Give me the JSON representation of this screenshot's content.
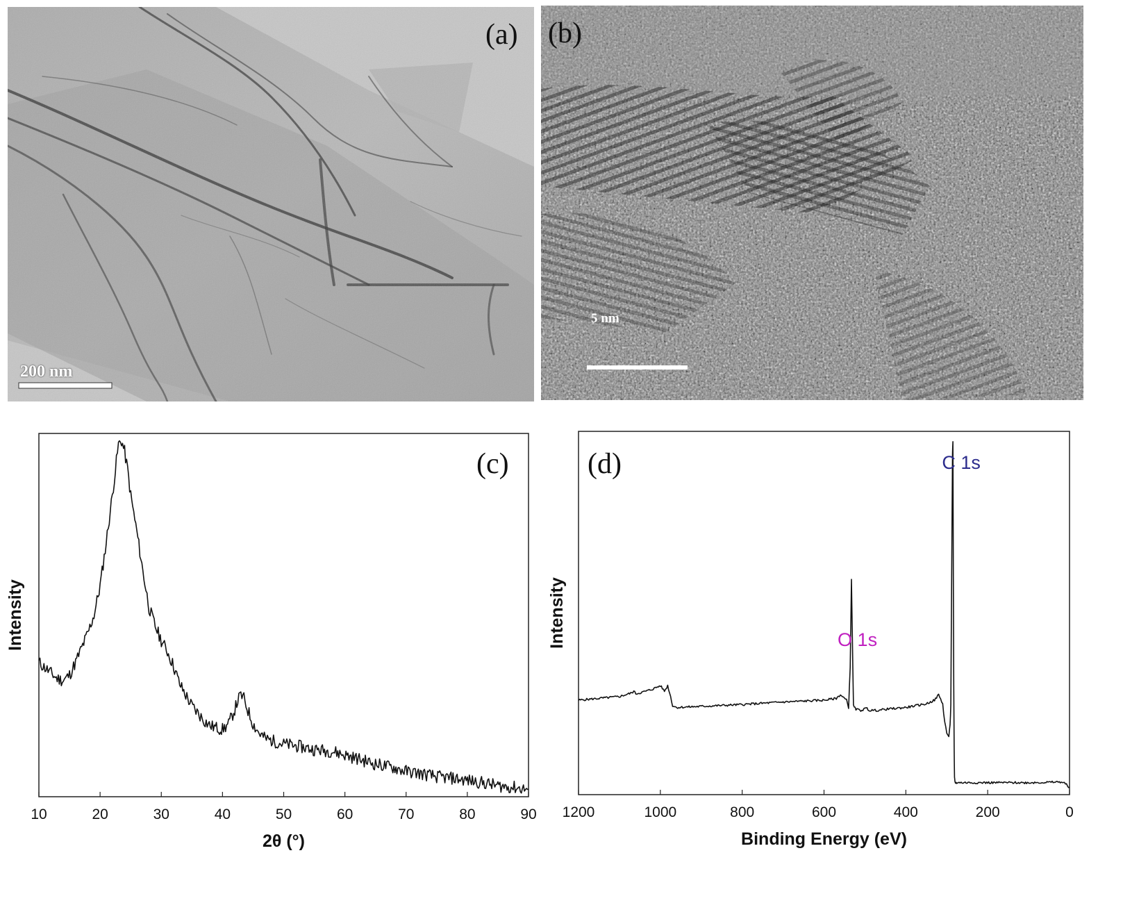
{
  "panels": {
    "a": {
      "label": "(a)",
      "scale_bar_text": "200 nm"
    },
    "b": {
      "label": "(b)",
      "scale_bar_text": "5 nm"
    },
    "c": {
      "label": "(c)"
    },
    "d": {
      "label": "(d)"
    }
  },
  "chart_data": [
    {
      "panel": "c",
      "type": "line",
      "xlabel": "2θ (°)",
      "ylabel": "Intensity",
      "xlim": [
        10,
        90
      ],
      "ylim": [
        0,
        1
      ],
      "x_ticks": [
        "10",
        "20",
        "30",
        "40",
        "50",
        "60",
        "70",
        "80",
        "90"
      ],
      "grid": false,
      "line_color": "#111111",
      "series": [
        {
          "x": [
            10,
            11,
            12,
            13,
            14,
            15,
            16,
            17,
            18,
            19,
            20,
            21,
            22,
            22.5,
            23,
            23.5,
            24,
            24.5,
            25,
            26,
            27,
            28,
            29,
            30,
            31,
            32,
            33,
            34,
            35,
            36,
            37,
            38,
            39,
            40,
            41,
            42,
            42.5,
            43,
            43.5,
            44,
            45,
            46,
            47,
            48,
            50,
            52,
            55,
            58,
            60,
            62,
            65,
            68,
            70,
            72,
            75,
            78,
            80,
            82,
            85,
            88,
            90
          ],
          "values": [
            0.37,
            0.355,
            0.34,
            0.325,
            0.32,
            0.335,
            0.37,
            0.41,
            0.45,
            0.5,
            0.58,
            0.7,
            0.83,
            0.9,
            0.97,
            0.98,
            0.95,
            0.9,
            0.83,
            0.73,
            0.62,
            0.52,
            0.47,
            0.43,
            0.4,
            0.36,
            0.31,
            0.28,
            0.25,
            0.23,
            0.21,
            0.195,
            0.19,
            0.185,
            0.2,
            0.24,
            0.265,
            0.28,
            0.27,
            0.245,
            0.2,
            0.175,
            0.16,
            0.155,
            0.145,
            0.14,
            0.13,
            0.125,
            0.115,
            0.105,
            0.09,
            0.08,
            0.07,
            0.065,
            0.055,
            0.05,
            0.045,
            0.04,
            0.03,
            0.025,
            0.02
          ]
        }
      ]
    },
    {
      "panel": "d",
      "type": "line",
      "xlabel": "Binding Energy (eV)",
      "ylabel": "Intensity",
      "xlim": [
        1200,
        0
      ],
      "ylim": [
        0,
        1
      ],
      "x_ticks": [
        "1200",
        "1000",
        "800",
        "600",
        "400",
        "200",
        "0"
      ],
      "grid": false,
      "line_color": "#111111",
      "annotations": [
        {
          "text": "C 1s",
          "x": 285,
          "color": "#2b2b8c"
        },
        {
          "text": "O 1s",
          "x": 532,
          "color": "#c020c0"
        }
      ],
      "series": [
        {
          "x": [
            1200,
            1150,
            1100,
            1070,
            1065,
            1060,
            1050,
            1020,
            1000,
            990,
            982,
            975,
            970,
            960,
            900,
            800,
            700,
            600,
            570,
            560,
            545,
            540,
            536,
            533,
            531,
            528,
            526,
            522,
            510,
            495,
            490,
            470,
            450,
            400,
            350,
            330,
            320,
            310,
            305,
            300,
            295,
            292,
            290,
            288,
            286,
            285,
            284,
            283,
            282,
            281,
            280,
            278,
            276,
            270,
            250,
            200,
            150,
            100,
            50,
            20,
            10,
            5,
            0
          ],
          "values": [
            0.26,
            0.265,
            0.27,
            0.28,
            0.285,
            0.278,
            0.28,
            0.29,
            0.3,
            0.285,
            0.3,
            0.27,
            0.245,
            0.24,
            0.243,
            0.248,
            0.255,
            0.26,
            0.265,
            0.275,
            0.26,
            0.24,
            0.35,
            0.59,
            0.45,
            0.245,
            0.24,
            0.235,
            0.232,
            0.238,
            0.232,
            0.232,
            0.235,
            0.24,
            0.25,
            0.26,
            0.275,
            0.25,
            0.2,
            0.17,
            0.16,
            0.19,
            0.25,
            0.6,
            0.94,
            0.97,
            0.6,
            0.3,
            0.13,
            0.05,
            0.035,
            0.033,
            0.033,
            0.033,
            0.033,
            0.033,
            0.033,
            0.033,
            0.034,
            0.035,
            0.03,
            0.025,
            0.02
          ]
        }
      ]
    }
  ]
}
